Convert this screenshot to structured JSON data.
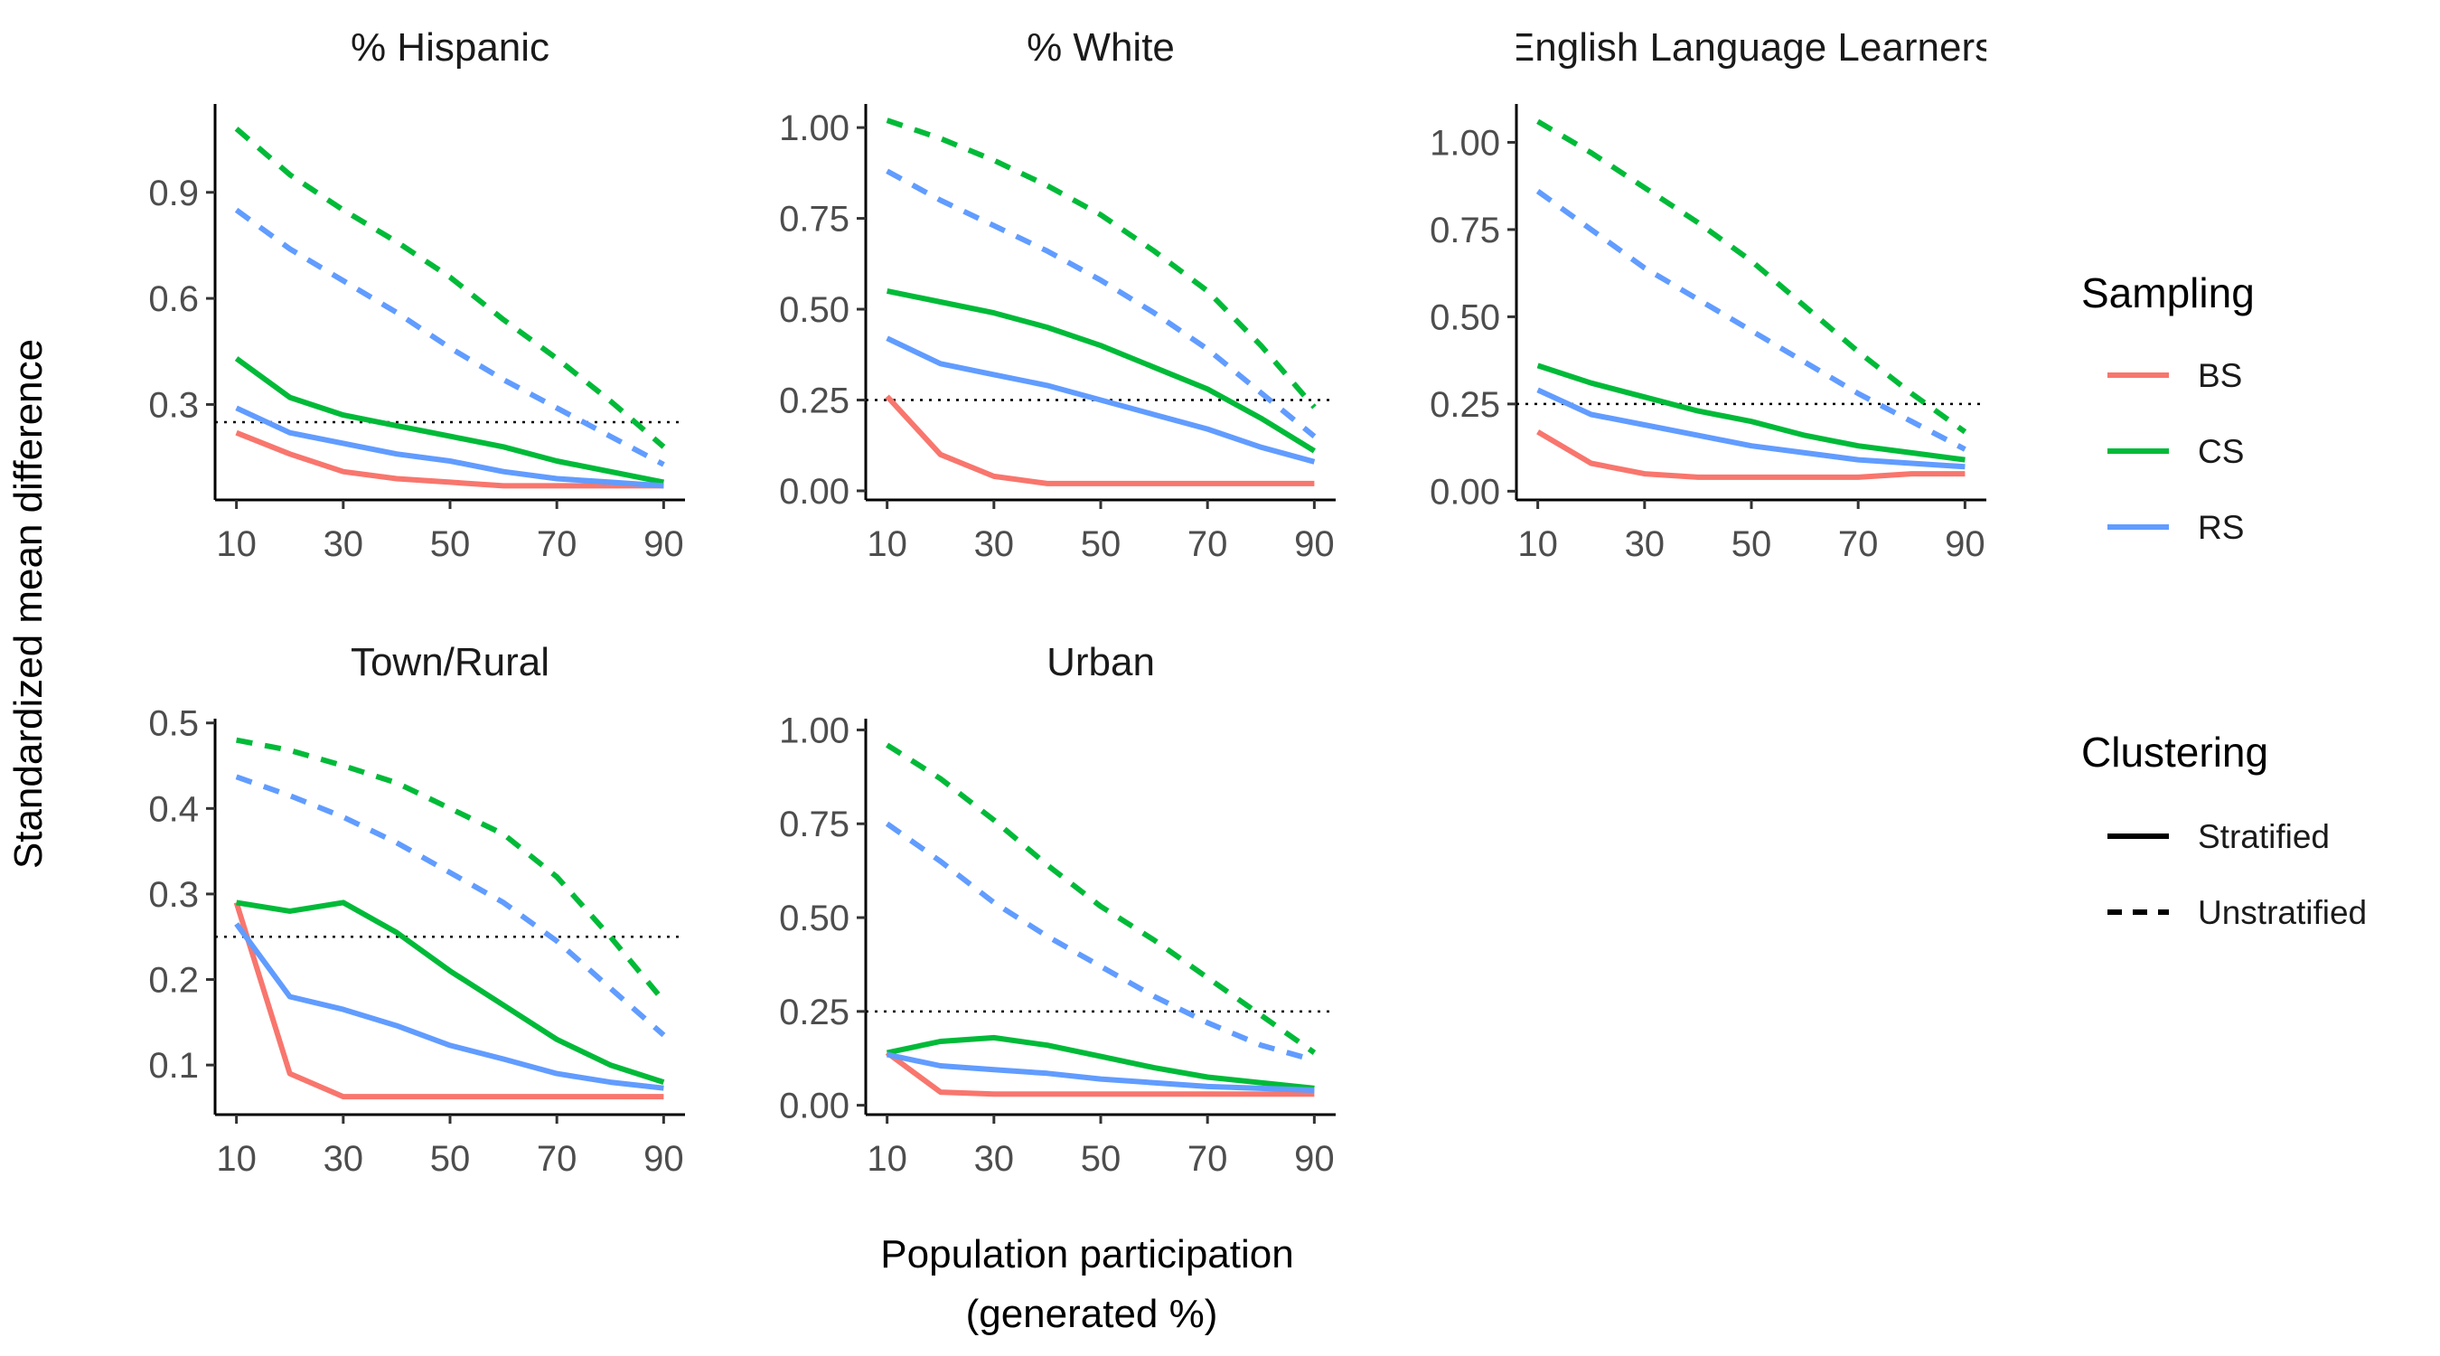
{
  "figure": {
    "ylabel": "Standardized mean difference",
    "xlabel_line1": "Population participation",
    "xlabel_line2": "(generated %)"
  },
  "legend": {
    "sampling_title": "Sampling",
    "sampling": [
      {
        "label": "BS",
        "color": "#F8766D"
      },
      {
        "label": "CS",
        "color": "#00BA38"
      },
      {
        "label": "RS",
        "color": "#619CFF"
      }
    ],
    "clustering_title": "Clustering",
    "clustering": [
      {
        "label": "Stratified",
        "linetype": "solid"
      },
      {
        "label": "Unstratified",
        "linetype": "dashed"
      }
    ]
  },
  "chart_data": [
    {
      "type": "line",
      "title": "% Hispanic",
      "x": [
        10,
        20,
        30,
        40,
        50,
        60,
        70,
        80,
        90
      ],
      "xticks": [
        10,
        30,
        50,
        70,
        90
      ],
      "xlim": [
        6,
        94
      ],
      "ylim": [
        0.03,
        1.15
      ],
      "yticks": [
        0.3,
        0.6,
        0.9
      ],
      "ytick_labels": [
        "0.3",
        "0.6",
        "0.9"
      ],
      "reference_line": 0.25,
      "series": [
        {
          "name": "BS",
          "clustering": "Stratified",
          "values": [
            0.22,
            0.16,
            0.11,
            0.09,
            0.08,
            0.07,
            0.07,
            0.07,
            0.07
          ]
        },
        {
          "name": "CS",
          "clustering": "Stratified",
          "values": [
            0.43,
            0.32,
            0.27,
            0.24,
            0.21,
            0.18,
            0.14,
            0.11,
            0.08
          ]
        },
        {
          "name": "RS",
          "clustering": "Stratified",
          "values": [
            0.29,
            0.22,
            0.19,
            0.16,
            0.14,
            0.11,
            0.09,
            0.08,
            0.07
          ]
        },
        {
          "name": "CS",
          "clustering": "Unstratified",
          "values": [
            1.08,
            0.95,
            0.85,
            0.76,
            0.66,
            0.54,
            0.43,
            0.31,
            0.18
          ]
        },
        {
          "name": "RS",
          "clustering": "Unstratified",
          "values": [
            0.85,
            0.74,
            0.65,
            0.56,
            0.46,
            0.37,
            0.29,
            0.21,
            0.13
          ]
        }
      ]
    },
    {
      "type": "line",
      "title": "% White",
      "x": [
        10,
        20,
        30,
        40,
        50,
        60,
        70,
        80,
        90
      ],
      "xticks": [
        10,
        30,
        50,
        70,
        90
      ],
      "xlim": [
        6,
        94
      ],
      "ylim": [
        -0.025,
        1.065
      ],
      "yticks": [
        0,
        0.25,
        0.5,
        0.75,
        1.0
      ],
      "ytick_labels": [
        "0.00",
        "0.25",
        "0.50",
        "0.75",
        "1.00"
      ],
      "reference_line": 0.25,
      "series": [
        {
          "name": "BS",
          "clustering": "Stratified",
          "values": [
            0.26,
            0.1,
            0.04,
            0.02,
            0.02,
            0.02,
            0.02,
            0.02,
            0.02
          ]
        },
        {
          "name": "CS",
          "clustering": "Stratified",
          "values": [
            0.55,
            0.52,
            0.49,
            0.45,
            0.4,
            0.34,
            0.28,
            0.2,
            0.11
          ]
        },
        {
          "name": "RS",
          "clustering": "Stratified",
          "values": [
            0.42,
            0.35,
            0.32,
            0.29,
            0.25,
            0.21,
            0.17,
            0.12,
            0.08
          ]
        },
        {
          "name": "CS",
          "clustering": "Unstratified",
          "values": [
            1.02,
            0.97,
            0.91,
            0.84,
            0.76,
            0.66,
            0.55,
            0.4,
            0.23
          ]
        },
        {
          "name": "RS",
          "clustering": "Unstratified",
          "values": [
            0.88,
            0.8,
            0.73,
            0.66,
            0.58,
            0.49,
            0.39,
            0.27,
            0.15
          ]
        }
      ]
    },
    {
      "type": "line",
      "title": "English Language Learners",
      "x": [
        10,
        20,
        30,
        40,
        50,
        60,
        70,
        80,
        90
      ],
      "xticks": [
        10,
        30,
        50,
        70,
        90
      ],
      "xlim": [
        6,
        94
      ],
      "ylim": [
        -0.025,
        1.11
      ],
      "yticks": [
        0,
        0.25,
        0.5,
        0.75,
        1.0
      ],
      "ytick_labels": [
        "0.00",
        "0.25",
        "0.50",
        "0.75",
        "1.00"
      ],
      "reference_line": 0.25,
      "series": [
        {
          "name": "BS",
          "clustering": "Stratified",
          "values": [
            0.17,
            0.08,
            0.05,
            0.04,
            0.04,
            0.04,
            0.04,
            0.05,
            0.05
          ]
        },
        {
          "name": "CS",
          "clustering": "Stratified",
          "values": [
            0.36,
            0.31,
            0.27,
            0.23,
            0.2,
            0.16,
            0.13,
            0.11,
            0.09
          ]
        },
        {
          "name": "RS",
          "clustering": "Stratified",
          "values": [
            0.29,
            0.22,
            0.19,
            0.16,
            0.13,
            0.11,
            0.09,
            0.08,
            0.07
          ]
        },
        {
          "name": "CS",
          "clustering": "Unstratified",
          "values": [
            1.06,
            0.97,
            0.87,
            0.77,
            0.66,
            0.53,
            0.4,
            0.28,
            0.17
          ]
        },
        {
          "name": "RS",
          "clustering": "Unstratified",
          "values": [
            0.86,
            0.75,
            0.64,
            0.55,
            0.46,
            0.37,
            0.28,
            0.2,
            0.12
          ]
        }
      ]
    },
    {
      "type": "line",
      "title": "Town/Rural",
      "x": [
        10,
        20,
        30,
        40,
        50,
        60,
        70,
        80,
        90
      ],
      "xticks": [
        10,
        30,
        50,
        70,
        90
      ],
      "xlim": [
        6,
        94
      ],
      "ylim": [
        0.042,
        0.505
      ],
      "yticks": [
        0.1,
        0.2,
        0.3,
        0.4,
        0.5
      ],
      "ytick_labels": [
        "0.1",
        "0.2",
        "0.3",
        "0.4",
        "0.5"
      ],
      "reference_line": 0.25,
      "series": [
        {
          "name": "BS",
          "clustering": "Stratified",
          "values": [
            0.29,
            0.09,
            0.063,
            0.063,
            0.063,
            0.063,
            0.063,
            0.063,
            0.063
          ]
        },
        {
          "name": "CS",
          "clustering": "Stratified",
          "values": [
            0.29,
            0.28,
            0.29,
            0.255,
            0.21,
            0.17,
            0.13,
            0.1,
            0.08
          ]
        },
        {
          "name": "RS",
          "clustering": "Stratified",
          "values": [
            0.265,
            0.18,
            0.165,
            0.146,
            0.123,
            0.107,
            0.09,
            0.08,
            0.073
          ]
        },
        {
          "name": "CS",
          "clustering": "Unstratified",
          "values": [
            0.48,
            0.468,
            0.45,
            0.43,
            0.4,
            0.37,
            0.32,
            0.25,
            0.175
          ]
        },
        {
          "name": "RS",
          "clustering": "Unstratified",
          "values": [
            0.437,
            0.415,
            0.39,
            0.36,
            0.325,
            0.29,
            0.245,
            0.19,
            0.135
          ]
        }
      ]
    },
    {
      "type": "line",
      "title": "Urban",
      "x": [
        10,
        20,
        30,
        40,
        50,
        60,
        70,
        80,
        90
      ],
      "xticks": [
        10,
        30,
        50,
        70,
        90
      ],
      "xlim": [
        6,
        94
      ],
      "ylim": [
        -0.025,
        1.03
      ],
      "yticks": [
        0,
        0.25,
        0.5,
        0.75,
        1.0
      ],
      "ytick_labels": [
        "0.00",
        "0.25",
        "0.50",
        "0.75",
        "1.00"
      ],
      "reference_line": 0.25,
      "series": [
        {
          "name": "BS",
          "clustering": "Stratified",
          "values": [
            0.14,
            0.035,
            0.03,
            0.03,
            0.03,
            0.03,
            0.03,
            0.03,
            0.03
          ]
        },
        {
          "name": "CS",
          "clustering": "Stratified",
          "values": [
            0.14,
            0.17,
            0.18,
            0.16,
            0.13,
            0.1,
            0.075,
            0.06,
            0.045
          ]
        },
        {
          "name": "RS",
          "clustering": "Stratified",
          "values": [
            0.135,
            0.105,
            0.095,
            0.085,
            0.07,
            0.06,
            0.05,
            0.045,
            0.04
          ]
        },
        {
          "name": "CS",
          "clustering": "Unstratified",
          "values": [
            0.96,
            0.87,
            0.76,
            0.64,
            0.53,
            0.44,
            0.34,
            0.24,
            0.14
          ]
        },
        {
          "name": "RS",
          "clustering": "Unstratified",
          "values": [
            0.75,
            0.65,
            0.54,
            0.45,
            0.37,
            0.29,
            0.22,
            0.16,
            0.12
          ]
        }
      ]
    }
  ]
}
